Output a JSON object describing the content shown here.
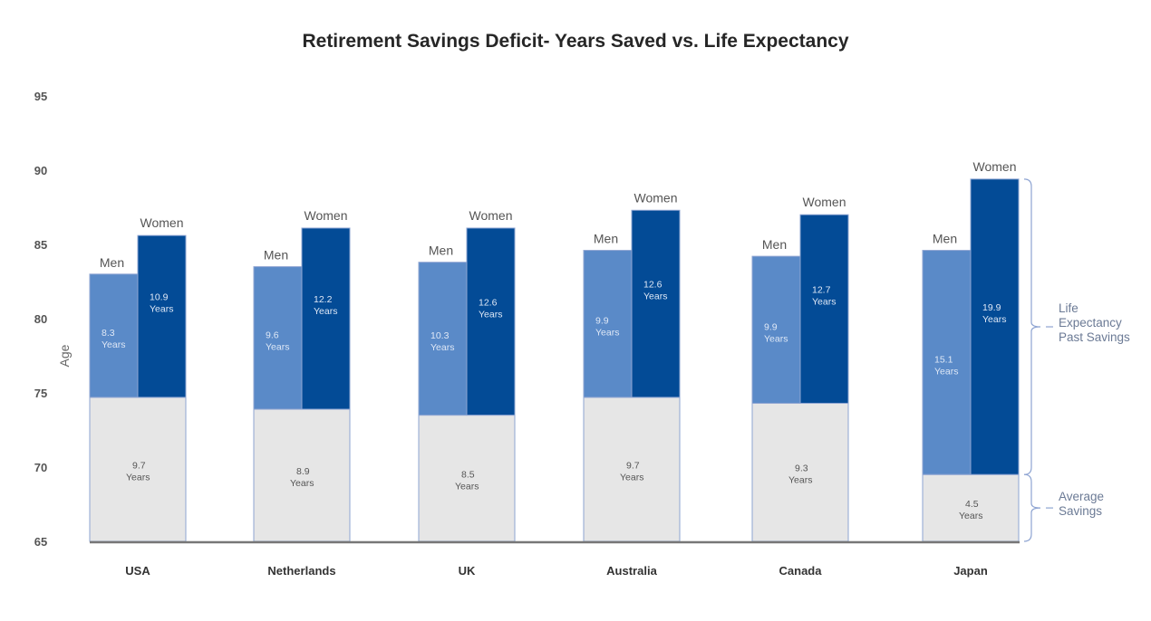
{
  "chart_data": {
    "type": "bar",
    "title": "Retirement Savings Deficit- Years Saved vs. Life Expectancy",
    "ylabel": "Age",
    "ylim": [
      65,
      95
    ],
    "yticks": [
      95,
      90,
      85,
      80,
      75,
      70,
      65
    ],
    "baseline": 65,
    "categories": [
      "USA",
      "Netherlands",
      "UK",
      "Australia",
      "Canada",
      "Japan"
    ],
    "series": [
      {
        "name": "Average Savings",
        "stack_label": "Years",
        "values": [
          9.7,
          8.9,
          8.5,
          9.7,
          9.3,
          4.5
        ],
        "labels": [
          "9.7",
          "8.9",
          "8.5",
          "9.7",
          "9.3",
          "4.5"
        ]
      },
      {
        "name": "Men",
        "stack_label": "Years",
        "values": [
          8.3,
          9.6,
          10.3,
          9.9,
          9.9,
          15.1
        ],
        "labels": [
          "8.3",
          "9.6",
          "10.3",
          "9.9",
          "9.9",
          "15.1"
        ]
      },
      {
        "name": "Women",
        "stack_label": "Years",
        "values": [
          10.9,
          12.2,
          12.6,
          12.6,
          12.7,
          19.9
        ],
        "labels": [
          "10.9",
          "12.2",
          "12.6",
          "12.6",
          "12.7",
          "19.9"
        ]
      }
    ],
    "bar_labels": {
      "men": "Men",
      "women": "Women",
      "years": "Years"
    },
    "annotations": {
      "life_expectancy": "Life Expectancy Past Savings",
      "life_expectancy_lines": [
        "Life",
        "Expectancy",
        "Past Savings"
      ],
      "average_savings": "Average Savings",
      "average_savings_lines": [
        "Average",
        "Savings"
      ]
    },
    "colors": {
      "savings": "#e6e6e6",
      "men": "#5a8ac8",
      "women": "#034b96",
      "bar_outline": "#8ea4d2",
      "axis": "#777777",
      "bracket": "#8ea4d2"
    }
  }
}
